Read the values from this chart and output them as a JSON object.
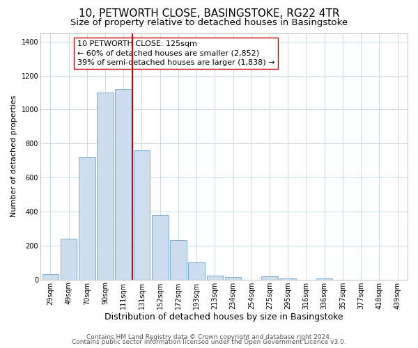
{
  "title": "10, PETWORTH CLOSE, BASINGSTOKE, RG22 4TR",
  "subtitle": "Size of property relative to detached houses in Basingstoke",
  "xlabel": "Distribution of detached houses by size in Basingstoke",
  "ylabel": "Number of detached properties",
  "bar_labels": [
    "29sqm",
    "49sqm",
    "70sqm",
    "90sqm",
    "111sqm",
    "131sqm",
    "152sqm",
    "172sqm",
    "193sqm",
    "213sqm",
    "234sqm",
    "254sqm",
    "275sqm",
    "295sqm",
    "316sqm",
    "336sqm",
    "357sqm",
    "377sqm",
    "418sqm",
    "439sqm"
  ],
  "bar_values": [
    30,
    240,
    720,
    1100,
    1120,
    760,
    380,
    230,
    100,
    25,
    15,
    0,
    20,
    8,
    0,
    5,
    0,
    0,
    0,
    0
  ],
  "bar_color": "#ccddf0",
  "bar_edge_color": "#7bafd4",
  "vline_x_index": 5,
  "vline_color": "#cc0000",
  "ylim": [
    0,
    1450
  ],
  "yticks": [
    0,
    200,
    400,
    600,
    800,
    1000,
    1200,
    1400
  ],
  "annotation_text_line1": "10 PETWORTH CLOSE: 125sqm",
  "annotation_text_line2": "← 60% of detached houses are smaller (2,852)",
  "annotation_text_line3": "39% of semi-detached houses are larger (1,838) →",
  "footer_line1": "Contains HM Land Registry data © Crown copyright and database right 2024.",
  "footer_line2": "Contains public sector information licensed under the Open Government Licence v3.0.",
  "title_fontsize": 11,
  "subtitle_fontsize": 9.5,
  "xlabel_fontsize": 9,
  "ylabel_fontsize": 8,
  "tick_fontsize": 7,
  "annotation_fontsize": 8,
  "footer_fontsize": 6.5,
  "grid_color": "#c8d8e8",
  "background_color": "#ffffff"
}
